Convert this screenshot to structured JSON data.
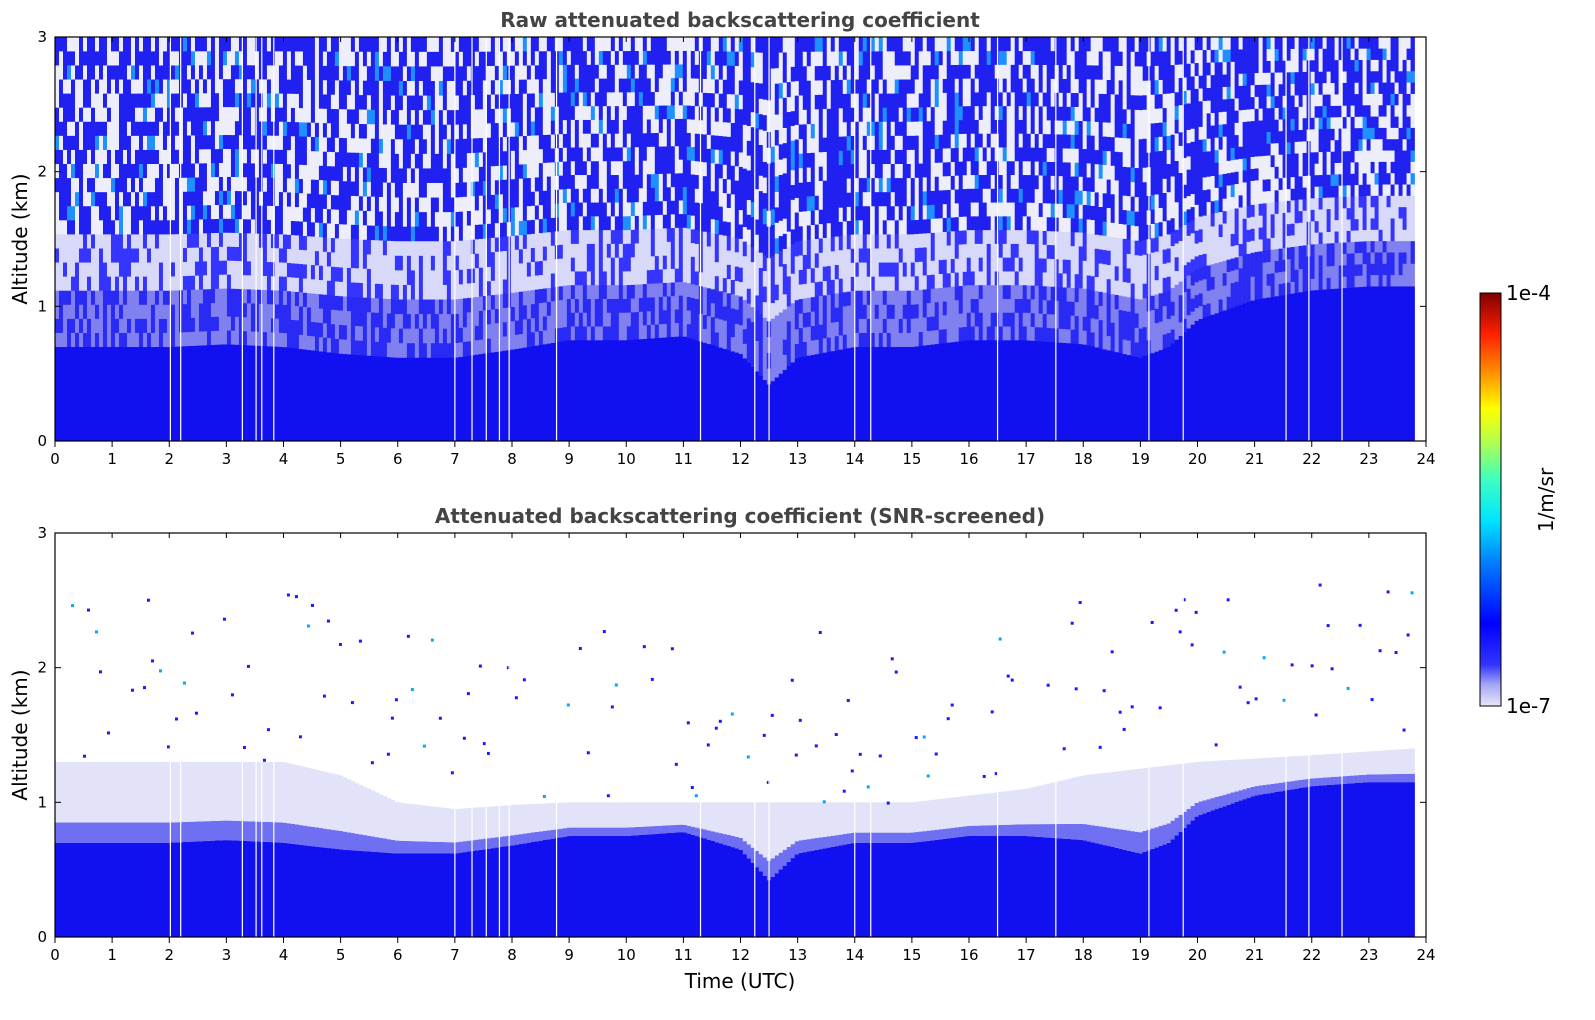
{
  "chart_data": [
    {
      "type": "heatmap",
      "title": "Raw attenuated backscattering coefficient",
      "xlabel": "",
      "ylabel": "Altitude (km)",
      "xlim": [
        0,
        24
      ],
      "ylim": [
        0,
        3
      ],
      "x_ticks": [
        0,
        1,
        2,
        3,
        4,
        5,
        6,
        7,
        8,
        9,
        10,
        11,
        12,
        13,
        14,
        15,
        16,
        17,
        18,
        19,
        20,
        21,
        22,
        23,
        24
      ],
      "y_ticks": [
        0,
        1,
        2,
        3
      ],
      "data_end_time": 23.8,
      "boundary_layer_top_km": [
        [
          0,
          0.7
        ],
        [
          1,
          0.7
        ],
        [
          2,
          0.7
        ],
        [
          3,
          0.72
        ],
        [
          4,
          0.7
        ],
        [
          5,
          0.65
        ],
        [
          6,
          0.62
        ],
        [
          7,
          0.62
        ],
        [
          8,
          0.68
        ],
        [
          9,
          0.75
        ],
        [
          10,
          0.75
        ],
        [
          11,
          0.78
        ],
        [
          12,
          0.65
        ],
        [
          12.5,
          0.42
        ],
        [
          13,
          0.62
        ],
        [
          14,
          0.7
        ],
        [
          15,
          0.7
        ],
        [
          16,
          0.75
        ],
        [
          17,
          0.75
        ],
        [
          18,
          0.72
        ],
        [
          19,
          0.62
        ],
        [
          19.5,
          0.7
        ],
        [
          20,
          0.9
        ],
        [
          21,
          1.05
        ],
        [
          22,
          1.12
        ],
        [
          23,
          1.15
        ],
        [
          23.8,
          1.15
        ]
      ],
      "gap_times": [
        2.02,
        2.2,
        3.28,
        3.52,
        3.62,
        3.83,
        7.0,
        7.3,
        7.55,
        7.78,
        7.95,
        8.78,
        11.3,
        12.25,
        12.5,
        14.0,
        14.28,
        16.5,
        17.52,
        19.15,
        19.75,
        21.55,
        21.95,
        22.53
      ]
    },
    {
      "type": "heatmap",
      "title": "Attenuated backscattering coefficient (SNR-screened)",
      "xlabel": "Time (UTC)",
      "ylabel": "Altitude (km)",
      "xlim": [
        0,
        24
      ],
      "ylim": [
        0,
        3
      ],
      "x_ticks": [
        0,
        1,
        2,
        3,
        4,
        5,
        6,
        7,
        8,
        9,
        10,
        11,
        12,
        13,
        14,
        15,
        16,
        17,
        18,
        19,
        20,
        21,
        22,
        23,
        24
      ],
      "y_ticks": [
        0,
        1,
        2,
        3
      ],
      "data_end_time": 23.8,
      "screened_layer_top_km": [
        [
          0,
          1.3
        ],
        [
          2,
          1.3
        ],
        [
          4,
          1.3
        ],
        [
          5,
          1.2
        ],
        [
          6,
          1.0
        ],
        [
          7,
          0.95
        ],
        [
          8,
          0.98
        ],
        [
          9,
          1.0
        ],
        [
          12,
          1.0
        ],
        [
          15,
          1.0
        ],
        [
          17,
          1.1
        ],
        [
          18,
          1.2
        ],
        [
          20,
          1.3
        ],
        [
          22,
          1.35
        ],
        [
          23.8,
          1.4
        ]
      ],
      "gap_times": [
        2.02,
        2.2,
        3.28,
        3.52,
        3.62,
        3.83,
        7.0,
        7.3,
        7.55,
        7.78,
        7.95,
        8.78,
        11.3,
        12.25,
        12.5,
        14.0,
        14.28,
        16.5,
        17.52,
        19.15,
        19.75,
        21.55,
        21.95,
        22.53
      ]
    }
  ],
  "colorbar": {
    "label": "1/m/sr",
    "min_label": "1e-7",
    "max_label": "1e-4",
    "colormap": "jet",
    "low_color": "#e6e6fa"
  }
}
